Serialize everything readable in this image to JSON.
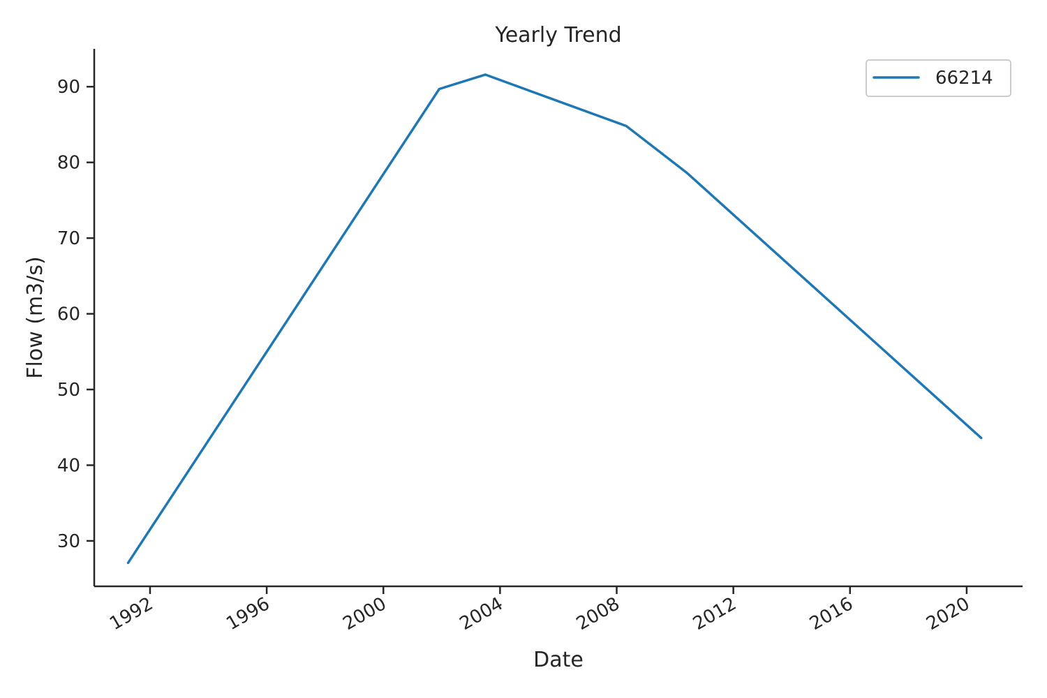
{
  "chart_data": {
    "type": "line",
    "title": "Yearly Trend",
    "xlabel": "Date",
    "ylabel": "Flow (m3/s)",
    "x_axis_type": "date",
    "xlim": [
      "1990-02-01",
      "2021-12-01"
    ],
    "ylim": [
      24,
      95
    ],
    "x_ticks": [
      "1992",
      "1996",
      "2000",
      "2004",
      "2008",
      "2012",
      "2016",
      "2020"
    ],
    "y_ticks": [
      30,
      40,
      50,
      60,
      70,
      80,
      90
    ],
    "grid": false,
    "legend_position": "top-right",
    "series": [
      {
        "name": "66214",
        "color": "#1f77b4",
        "x": [
          "1991-04-01",
          "2001-12-01",
          "2003-07-01",
          "2008-05-01",
          "2010-06-01",
          "2020-07-01"
        ],
        "y": [
          27.1,
          89.7,
          91.6,
          84.8,
          78.6,
          43.6
        ]
      }
    ]
  }
}
